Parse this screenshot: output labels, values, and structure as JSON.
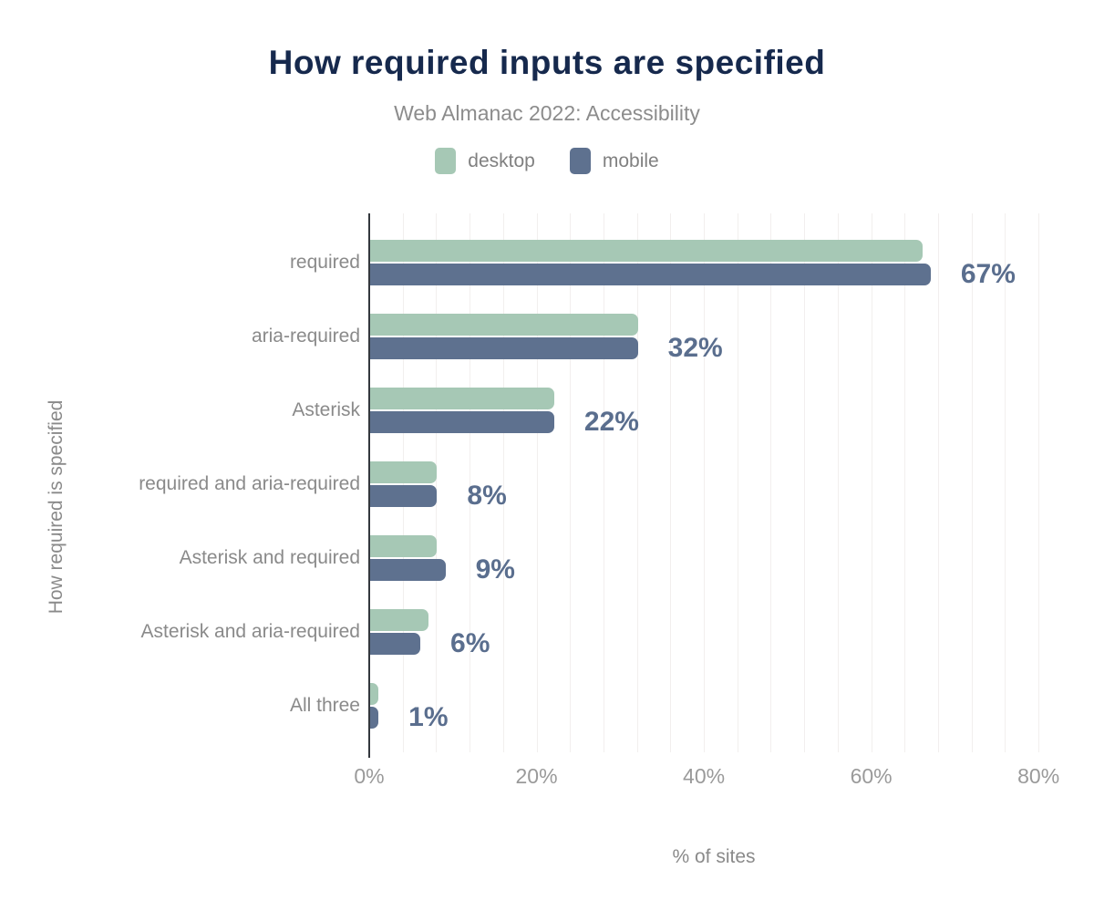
{
  "header": {
    "title": "How required inputs are specified",
    "subtitle": "Web Almanac 2022: Accessibility"
  },
  "legend": {
    "position": "top",
    "items": [
      {
        "label": "desktop",
        "color": "#a6c8b5"
      },
      {
        "label": "mobile",
        "color": "#5e718f"
      }
    ]
  },
  "chart_data": {
    "type": "bar",
    "orientation": "horizontal",
    "title": "How required inputs are specified",
    "subtitle": "Web Almanac 2022: Accessibility",
    "xlabel": "% of sites",
    "ylabel": "How required is specified",
    "categories": [
      "required",
      "aria-required",
      "Asterisk",
      "required and aria-required",
      "Asterisk and required",
      "Asterisk and aria-required",
      "All three"
    ],
    "series": [
      {
        "name": "desktop",
        "color": "#a6c8b5",
        "values": [
          66,
          32,
          22,
          8,
          8,
          7,
          1
        ]
      },
      {
        "name": "mobile",
        "color": "#5e718f",
        "values": [
          67,
          32,
          22,
          8,
          9,
          6,
          1
        ]
      }
    ],
    "value_labels": [
      "67%",
      "32%",
      "22%",
      "8%",
      "9%",
      "6%",
      "1%"
    ],
    "x_ticks": [
      {
        "label": "0%",
        "value": 0
      },
      {
        "label": "20%",
        "value": 20
      },
      {
        "label": "40%",
        "value": 40
      },
      {
        "label": "60%",
        "value": 60
      },
      {
        "label": "80%",
        "value": 80
      }
    ],
    "xlim": [
      0,
      82.3
    ],
    "grid": {
      "vertical_minor_interval_pct": 4,
      "color": "#f2efee",
      "horizontal": false
    },
    "legend_position": "top"
  },
  "colors": {
    "background": "#ffffff",
    "title_text": "#16294d",
    "subtitle_text": "#8c8c8c",
    "legend_text": "#808080",
    "category_text": "#8a8a8a",
    "tick_text": "#9a9a9a",
    "axis_title_text": "#8a8a8a",
    "value_label_text": "#5a6e8e",
    "axis_line": "#33373d",
    "gridline": "#f2efee",
    "desktop_bar": "#a6c8b5",
    "mobile_bar": "#5e718f"
  }
}
